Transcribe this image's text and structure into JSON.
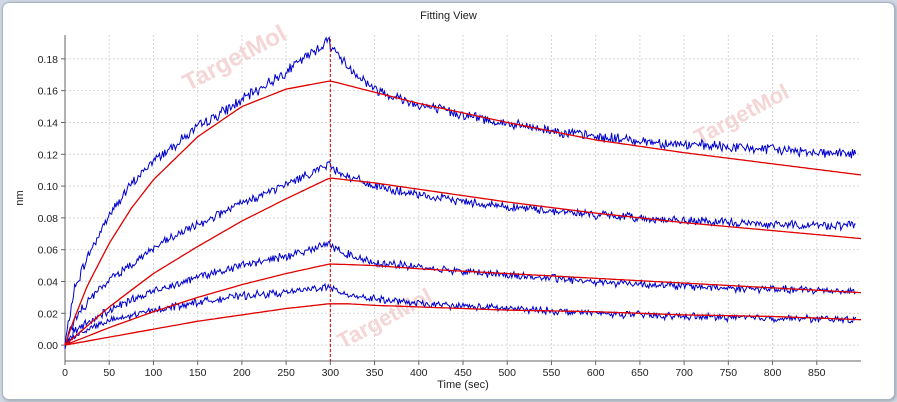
{
  "window": {
    "title": "Fitting View"
  },
  "watermark": {
    "text": "TargetMol"
  },
  "chart_data": {
    "type": "line",
    "title": "Fitting View",
    "xlabel": "Time (sec)",
    "ylabel": "nm",
    "xlim": [
      0,
      900
    ],
    "ylim": [
      -0.01,
      0.195
    ],
    "xticks": [
      0,
      50,
      100,
      150,
      200,
      250,
      300,
      350,
      400,
      450,
      500,
      550,
      600,
      650,
      700,
      750,
      800,
      850
    ],
    "yticks": [
      0.0,
      0.02,
      0.04,
      0.06,
      0.08,
      0.1,
      0.12,
      0.14,
      0.16,
      0.18
    ],
    "grid": true,
    "vline": {
      "x": 300,
      "color": "#cc0000",
      "style": "dashed"
    },
    "colors": {
      "measured": "#0000cc",
      "fit": "#e00000"
    },
    "measured_series": [
      {
        "x": [
          0,
          10,
          25,
          50,
          75,
          100,
          150,
          200,
          250,
          299,
          301,
          320,
          350,
          400,
          500,
          600,
          700,
          800,
          895
        ],
        "y": [
          0,
          0.034,
          0.055,
          0.082,
          0.101,
          0.116,
          0.137,
          0.154,
          0.172,
          0.192,
          0.188,
          0.175,
          0.161,
          0.151,
          0.139,
          0.131,
          0.126,
          0.123,
          0.12
        ]
      },
      {
        "x": [
          0,
          10,
          25,
          50,
          100,
          150,
          200,
          250,
          299,
          301,
          320,
          350,
          400,
          500,
          600,
          700,
          800,
          895
        ],
        "y": [
          0,
          0.015,
          0.027,
          0.041,
          0.061,
          0.076,
          0.089,
          0.101,
          0.114,
          0.112,
          0.106,
          0.1,
          0.094,
          0.087,
          0.082,
          0.078,
          0.076,
          0.075
        ]
      },
      {
        "x": [
          0,
          10,
          25,
          50,
          100,
          150,
          200,
          250,
          299,
          301,
          320,
          350,
          400,
          500,
          600,
          700,
          800,
          895
        ],
        "y": [
          0,
          0.008,
          0.014,
          0.022,
          0.034,
          0.043,
          0.05,
          0.056,
          0.064,
          0.062,
          0.057,
          0.052,
          0.049,
          0.044,
          0.04,
          0.037,
          0.035,
          0.034
        ]
      },
      {
        "x": [
          0,
          10,
          25,
          50,
          100,
          150,
          200,
          250,
          299,
          301,
          320,
          350,
          400,
          500,
          600,
          700,
          800,
          895
        ],
        "y": [
          0,
          0.005,
          0.01,
          0.015,
          0.022,
          0.027,
          0.031,
          0.033,
          0.037,
          0.035,
          0.032,
          0.029,
          0.026,
          0.023,
          0.02,
          0.018,
          0.017,
          0.016
        ]
      }
    ],
    "fit_series": [
      {
        "x": [
          0,
          10,
          25,
          50,
          75,
          100,
          150,
          200,
          250,
          299,
          301,
          350,
          400,
          500,
          600,
          700,
          800,
          900
        ],
        "y": [
          0,
          0.016,
          0.037,
          0.064,
          0.086,
          0.104,
          0.131,
          0.15,
          0.161,
          0.166,
          0.166,
          0.159,
          0.152,
          0.14,
          0.129,
          0.121,
          0.114,
          0.107
        ]
      },
      {
        "x": [
          0,
          25,
          50,
          100,
          150,
          200,
          250,
          299,
          301,
          350,
          400,
          500,
          600,
          700,
          800,
          900
        ],
        "y": [
          0,
          0.012,
          0.024,
          0.045,
          0.062,
          0.078,
          0.092,
          0.105,
          0.105,
          0.102,
          0.098,
          0.09,
          0.083,
          0.077,
          0.072,
          0.067
        ]
      },
      {
        "x": [
          0,
          50,
          100,
          150,
          200,
          250,
          299,
          301,
          350,
          400,
          500,
          600,
          700,
          800,
          900
        ],
        "y": [
          0,
          0.011,
          0.021,
          0.03,
          0.038,
          0.045,
          0.051,
          0.051,
          0.05,
          0.048,
          0.045,
          0.042,
          0.039,
          0.036,
          0.033
        ]
      },
      {
        "x": [
          0,
          50,
          100,
          150,
          200,
          250,
          299,
          301,
          320,
          350,
          400,
          500,
          600,
          700,
          800,
          900
        ],
        "y": [
          0,
          0.005,
          0.01,
          0.015,
          0.019,
          0.023,
          0.026,
          0.026,
          0.026,
          0.025,
          0.024,
          0.022,
          0.021,
          0.019,
          0.018,
          0.016
        ]
      }
    ]
  }
}
